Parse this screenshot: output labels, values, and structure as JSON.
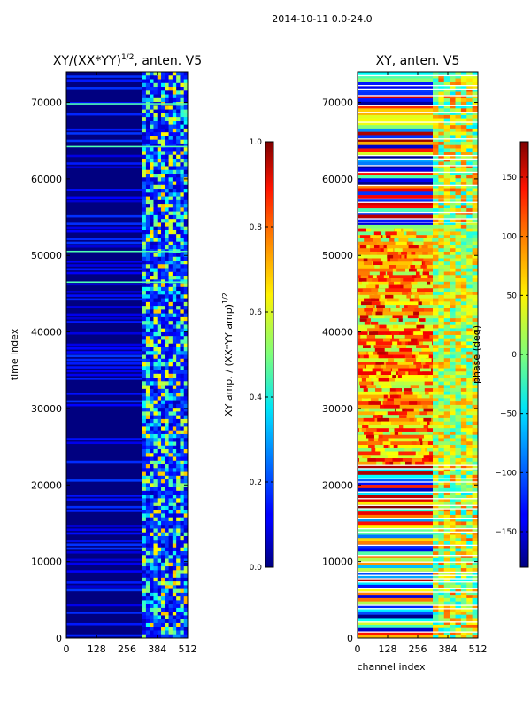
{
  "figure_title": "2014-10-11 0.0-24.0",
  "chart_data": [
    {
      "type": "heatmap",
      "title": "XY/(XX*YY)^1/2, anten. V5",
      "title_main": "XY/(XX*YY)",
      "title_sup": "1/2",
      "title_tail": ", anten. V5",
      "xlabel": "",
      "ylabel": "time index",
      "xlim": [
        0,
        512
      ],
      "ylim": [
        0,
        74000
      ],
      "xticks": [
        0,
        128,
        256,
        384,
        512
      ],
      "yticks": [
        0,
        10000,
        20000,
        30000,
        40000,
        50000,
        60000,
        70000
      ],
      "colorbar": {
        "label_main": "XY amp. / (XX*YY amp)",
        "label_sup": "1/2",
        "range": [
          0.0,
          1.0
        ],
        "ticks": [
          "0.0",
          "0.2",
          "0.4",
          "0.6",
          "0.8",
          "1.0"
        ],
        "tick_values": [
          0.0,
          0.2,
          0.4,
          0.6,
          0.8,
          1.0
        ]
      },
      "description_values": {
        "colormap": "jet",
        "background_level": 0.0,
        "high_channel_band": [
          320,
          512
        ],
        "bright_rows": [
          46500,
          50500,
          64200,
          69800
        ]
      }
    },
    {
      "type": "heatmap",
      "title": "XY, anten. V5",
      "xlabel": "channel index",
      "ylabel": "",
      "xlim": [
        0,
        512
      ],
      "ylim": [
        0,
        74000
      ],
      "xticks": [
        0,
        128,
        256,
        384,
        512
      ],
      "yticks": [
        0,
        10000,
        20000,
        30000,
        40000,
        50000,
        60000,
        70000
      ],
      "colorbar": {
        "label": "phase (deg)",
        "range": [
          -180,
          180
        ],
        "ticks": [
          "150",
          "100",
          "50",
          "0",
          "−50",
          "−100",
          "−150"
        ],
        "tick_values": [
          150,
          100,
          50,
          0,
          -50,
          -100,
          -150
        ]
      },
      "description_values": {
        "colormap": "jet",
        "noisy_band_rows": [
          22500,
          53500
        ],
        "vertical_band_channels": [
          320,
          512
        ]
      }
    }
  ]
}
